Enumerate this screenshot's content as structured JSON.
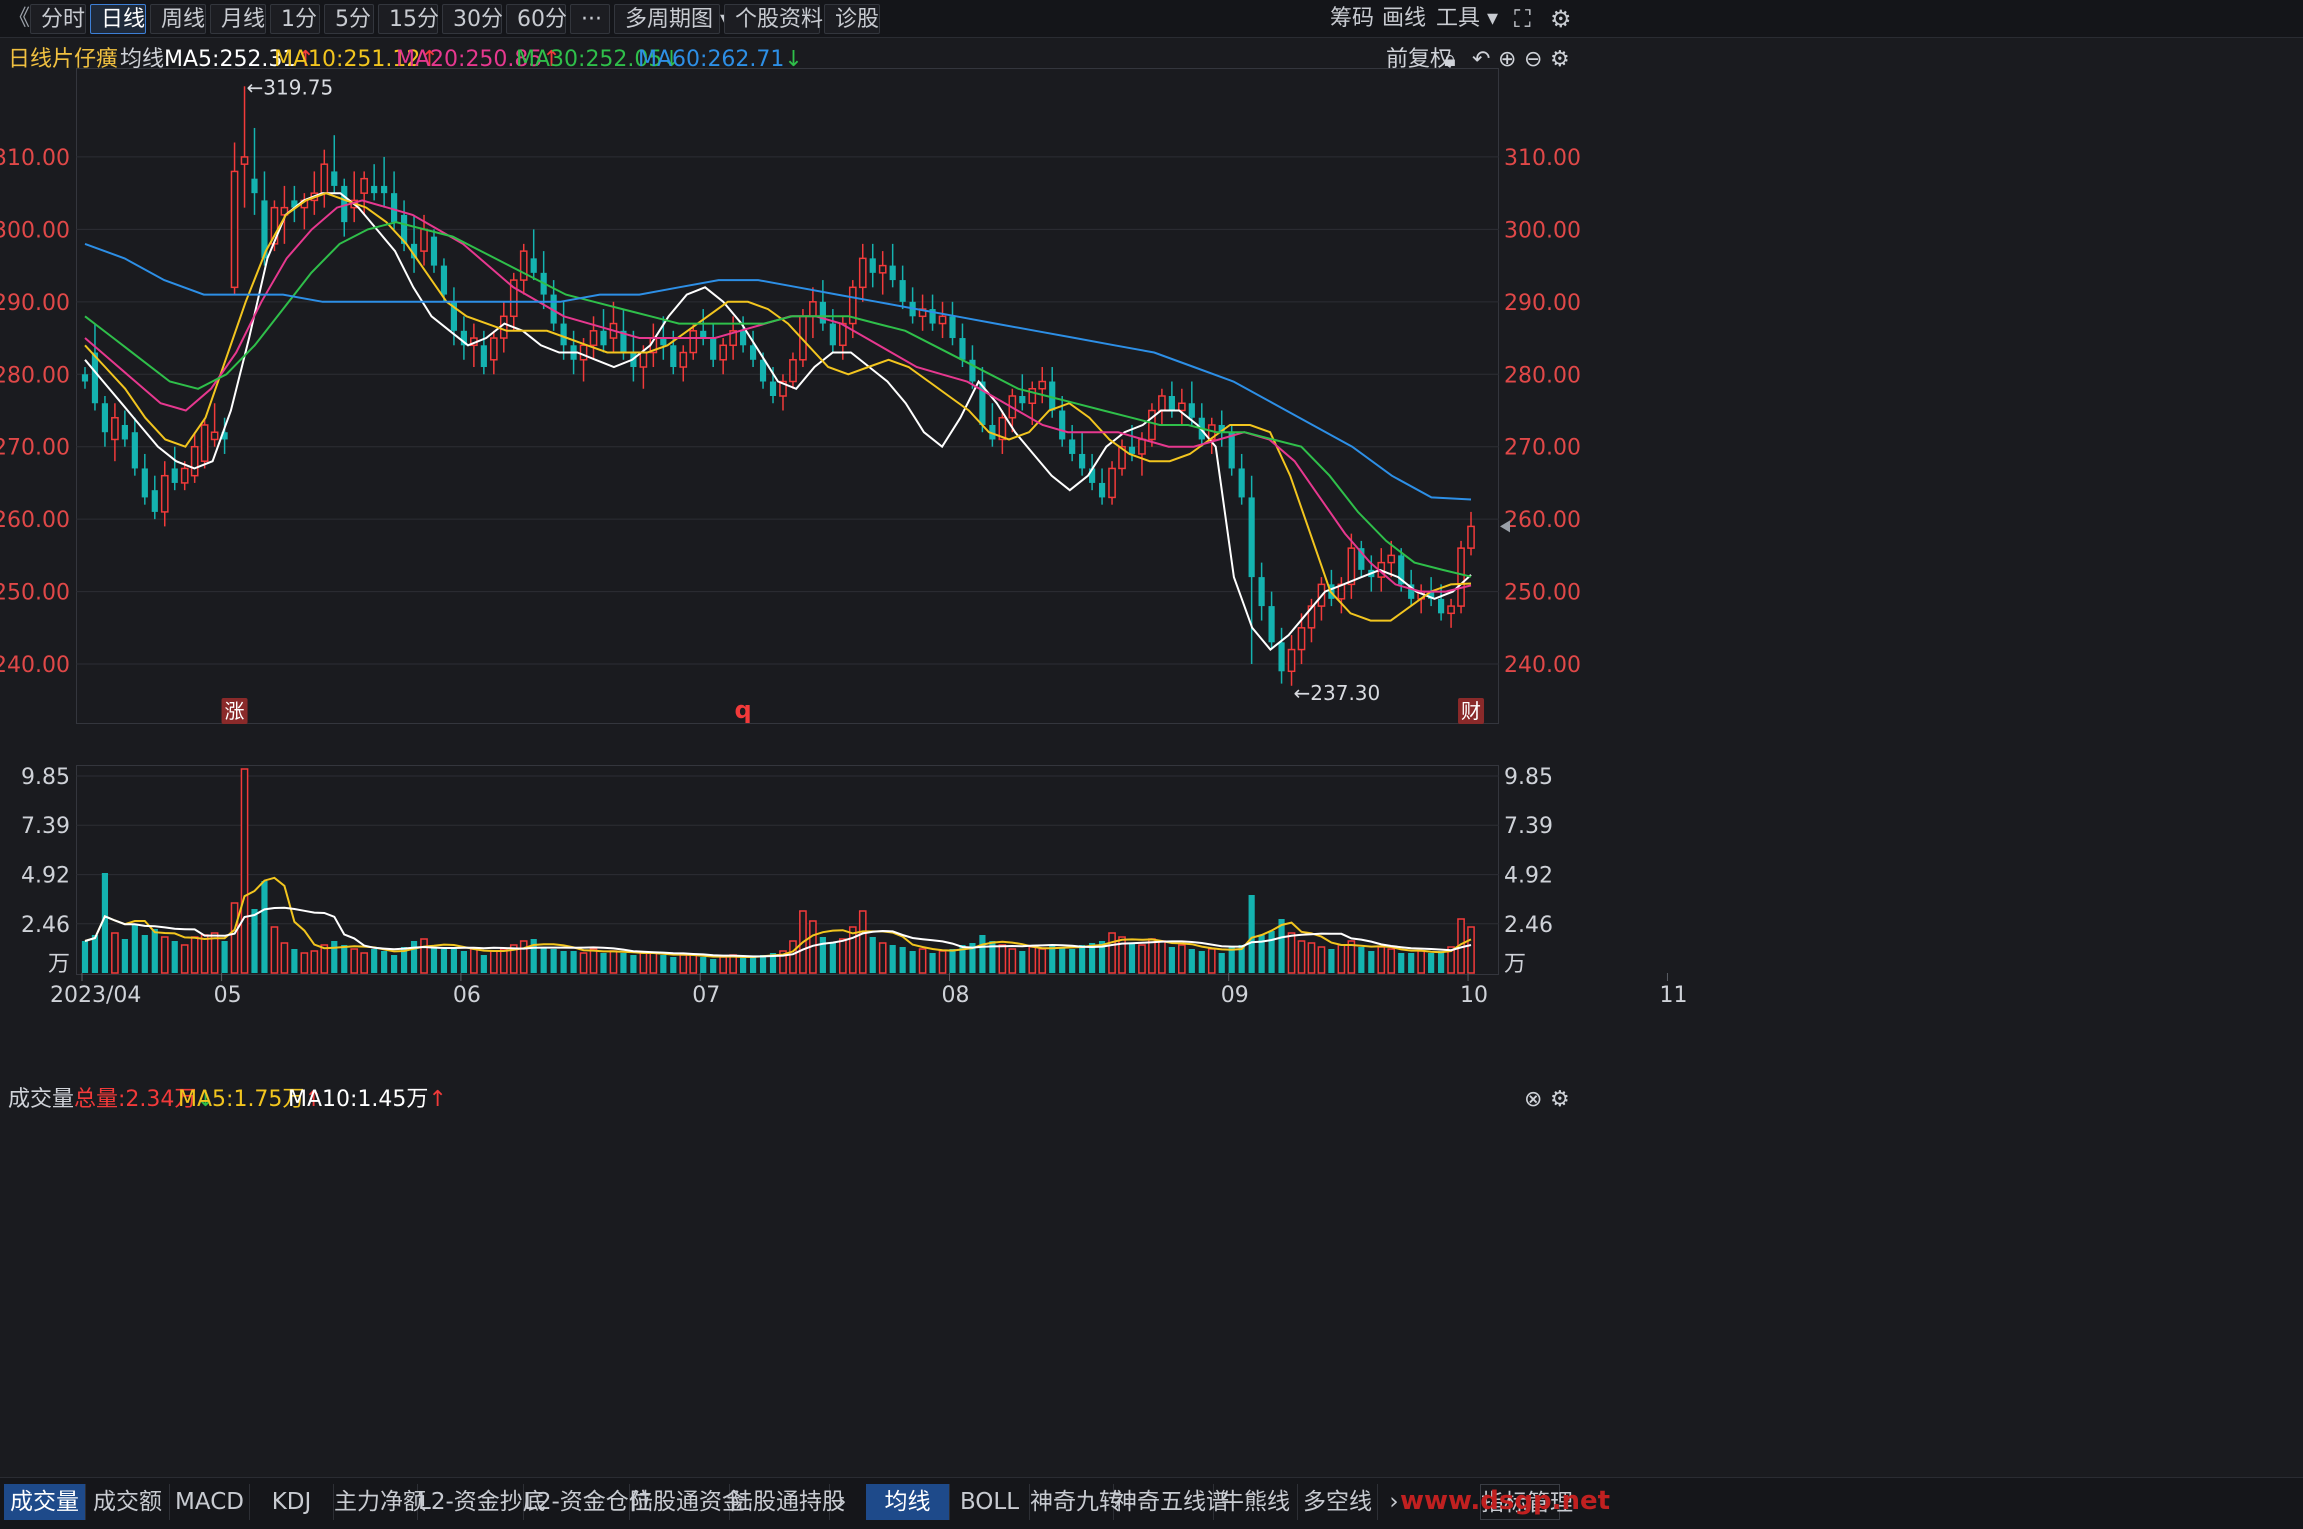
{
  "toolbar": {
    "collapse_glyph": "《",
    "timeframes": [
      "分时",
      "日线",
      "周线",
      "月线",
      "1分",
      "5分",
      "15分",
      "30分",
      "60分"
    ],
    "active": "日线",
    "more_glyph": "···",
    "multi_period": "多周期图",
    "stock_info": "个股资料",
    "diagnose": "诊股",
    "chips": "筹码",
    "draw": "画线",
    "tools": "工具",
    "icons": [
      "dropdown-icon",
      "fullscreen-icon",
      "settings-icon"
    ]
  },
  "legend": {
    "period": "日线",
    "stock_name": "片仔癀",
    "ma_title": "均线",
    "ma5": "MA5:252.31",
    "ma10": "MA10:251.12",
    "ma20": "MA20:250.85",
    "ma30": "MA30:252.05",
    "ma60": "MA60:262.71",
    "ma5_trend": "↑",
    "ma10_trend": "↑",
    "ma20_trend": "↑",
    "ma30_trend": "↓",
    "ma60_trend": "↓",
    "adjust": "前复权",
    "right_icons": [
      "lock-icon",
      "undo-icon",
      "zoom-in-icon",
      "zoom-out-icon",
      "settings-icon"
    ]
  },
  "colors": {
    "up": "#f23a3a",
    "down": "#14b3b0",
    "ma5": "#ffffff",
    "ma10": "#f2c51f",
    "ma20": "#e6388f",
    "ma30": "#2fbf4a",
    "ma60": "#2d8fe6",
    "axis_text": "#e04848",
    "grid": "#2c2e34"
  },
  "markers": {
    "high": "←319.75",
    "low": "←237.30",
    "badge_rise": "涨",
    "badge_q": "q",
    "badge_finance": "财"
  },
  "volume": {
    "title": "成交量",
    "total": "总量:2.34万",
    "total_trend": "↓",
    "ma5": "MA5:1.75万",
    "ma5_trend": "↑",
    "ma10": "MA10:1.45万",
    "ma10_trend": "↑",
    "unit": "万"
  },
  "bottom_tabs": {
    "left": [
      "成交量",
      "成交额",
      "MACD",
      "KDJ",
      "主力净额",
      "L2-资金抄底",
      "L2-资金仓位",
      "陆股通资金",
      "陆股通持股"
    ],
    "active_left": "成交量",
    "right": [
      "均线",
      "BOLL",
      "神奇九转",
      "神奇五线谱",
      "牛熊线",
      "多空线"
    ],
    "active_right": "均线",
    "manage": "指标管理",
    "watermark": "www.dsgp.net"
  },
  "chart_data": {
    "type": "candlestick",
    "price_axis": {
      "ticks": [
        "310.00",
        "300.00",
        "290.00",
        "280.00",
        "270.00",
        "260.00",
        "250.00",
        "240.00"
      ],
      "ylim": [
        232,
        322
      ]
    },
    "volume_axis": {
      "ticks": [
        "9.85",
        "7.39",
        "4.92",
        "2.46"
      ],
      "ylim": [
        0,
        10.3
      ]
    },
    "x_labels": [
      {
        "label": "2023/04",
        "index": 0
      },
      {
        "label": "05",
        "index": 14
      },
      {
        "label": "06",
        "index": 38
      },
      {
        "label": "07",
        "index": 62
      },
      {
        "label": "08",
        "index": 87
      },
      {
        "label": "09",
        "index": 115
      },
      {
        "label": "10",
        "index": 139
      },
      {
        "label": "11",
        "index": 159
      }
    ],
    "candles_ohlcv": [
      [
        280,
        281,
        278,
        279,
        1.6
      ],
      [
        283,
        287,
        275,
        276,
        1.9
      ],
      [
        276,
        277,
        270,
        272,
        5.0
      ],
      [
        271,
        276,
        268,
        274,
        2.0
      ],
      [
        273,
        275,
        270,
        271,
        1.7
      ],
      [
        272,
        274,
        266,
        267,
        2.4
      ],
      [
        267,
        269,
        262,
        263,
        1.9
      ],
      [
        264,
        266,
        260,
        261,
        2.2
      ],
      [
        261,
        268,
        259,
        266,
        1.8
      ],
      [
        267,
        270,
        264,
        265,
        1.6
      ],
      [
        265,
        268,
        264,
        267,
        1.4
      ],
      [
        266,
        272,
        265,
        270,
        1.8
      ],
      [
        268,
        274,
        267,
        273,
        1.9
      ],
      [
        271,
        276,
        270,
        272,
        2.0
      ],
      [
        272,
        274,
        269,
        271,
        1.6
      ],
      [
        292,
        312,
        291,
        308,
        3.5
      ],
      [
        309,
        319.75,
        303,
        310,
        10.2
      ],
      [
        307,
        314,
        302,
        305,
        3.2
      ],
      [
        304,
        308,
        295,
        296,
        4.6
      ],
      [
        298,
        304,
        297,
        303,
        2.3
      ],
      [
        302,
        306,
        298,
        303,
        1.5
      ],
      [
        304,
        306,
        301,
        303,
        1.2
      ],
      [
        303,
        305,
        300,
        304,
        1.0
      ],
      [
        304,
        308,
        302,
        305,
        1.1
      ],
      [
        305,
        311,
        303,
        309,
        1.4
      ],
      [
        308,
        313,
        305,
        306,
        1.6
      ],
      [
        306,
        307,
        299,
        301,
        1.4
      ],
      [
        303,
        308,
        301,
        304,
        1.2
      ],
      [
        305,
        308,
        302,
        307,
        1.0
      ],
      [
        306,
        309,
        304,
        305,
        1.2
      ],
      [
        306,
        310,
        303,
        305,
        1.1
      ],
      [
        305,
        308,
        300,
        301,
        0.9
      ],
      [
        302,
        304,
        297,
        298,
        1.3
      ],
      [
        298,
        302,
        294,
        296,
        1.6
      ],
      [
        297,
        302,
        295,
        300,
        1.7
      ],
      [
        299,
        300,
        294,
        295,
        1.3
      ],
      [
        295,
        296,
        290,
        291,
        1.2
      ],
      [
        290,
        292,
        284,
        286,
        1.2
      ],
      [
        286,
        288,
        282,
        284,
        1.1
      ],
      [
        284,
        287,
        281,
        285,
        1.2
      ],
      [
        284,
        286,
        280,
        281,
        0.9
      ],
      [
        282,
        286,
        280,
        285,
        1.1
      ],
      [
        285,
        290,
        283,
        288,
        1.2
      ],
      [
        288,
        294,
        286,
        293,
        1.4
      ],
      [
        293,
        298,
        291,
        297,
        1.6
      ],
      [
        296,
        300,
        293,
        294,
        1.7
      ],
      [
        294,
        297,
        289,
        291,
        1.3
      ],
      [
        291,
        293,
        286,
        287,
        1.2
      ],
      [
        287,
        290,
        282,
        284,
        1.1
      ],
      [
        284,
        286,
        280,
        282,
        1.1
      ],
      [
        282,
        285,
        279,
        284,
        1.0
      ],
      [
        284,
        288,
        282,
        286,
        1.2
      ],
      [
        286,
        289,
        283,
        284,
        1.0
      ],
      [
        285,
        290,
        283,
        287,
        1.1
      ],
      [
        286,
        289,
        282,
        283,
        1.0
      ],
      [
        283,
        286,
        279,
        281,
        0.9
      ],
      [
        281,
        284,
        278,
        283,
        1.0
      ],
      [
        283,
        287,
        281,
        285,
        1.0
      ],
      [
        285,
        288,
        282,
        284,
        0.9
      ],
      [
        284,
        286,
        280,
        281,
        0.8
      ],
      [
        281,
        284,
        279,
        283,
        0.9
      ],
      [
        283,
        287,
        282,
        286,
        0.9
      ],
      [
        286,
        289,
        284,
        285,
        0.8
      ],
      [
        285,
        287,
        281,
        282,
        0.7
      ],
      [
        282,
        285,
        280,
        284,
        0.8
      ],
      [
        284,
        288,
        282,
        286,
        0.9
      ],
      [
        286,
        288,
        283,
        284,
        0.8
      ],
      [
        284,
        286,
        281,
        282,
        0.8
      ],
      [
        282,
        283,
        278,
        279,
        0.9
      ],
      [
        279,
        281,
        276,
        277,
        1.0
      ],
      [
        277,
        280,
        275,
        279,
        1.1
      ],
      [
        279,
        283,
        278,
        282,
        1.6
      ],
      [
        282,
        289,
        281,
        288,
        3.1
      ],
      [
        288,
        292,
        285,
        290,
        2.6
      ],
      [
        290,
        293,
        286,
        287,
        1.8
      ],
      [
        287,
        289,
        283,
        284,
        1.5
      ],
      [
        284,
        288,
        282,
        287,
        1.7
      ],
      [
        287,
        293,
        285,
        292,
        2.3
      ],
      [
        292,
        298,
        290,
        296,
        3.1
      ],
      [
        296,
        298,
        292,
        294,
        1.8
      ],
      [
        294,
        297,
        291,
        295,
        1.5
      ],
      [
        295,
        298,
        292,
        293,
        1.4
      ],
      [
        293,
        295,
        289,
        290,
        1.3
      ],
      [
        290,
        292,
        287,
        288,
        1.1
      ],
      [
        288,
        291,
        286,
        289,
        1.2
      ],
      [
        289,
        291,
        286,
        287,
        1.0
      ],
      [
        287,
        290,
        285,
        288,
        1.1
      ],
      [
        288,
        290,
        284,
        285,
        1.2
      ],
      [
        285,
        287,
        281,
        282,
        1.4
      ],
      [
        282,
        284,
        278,
        279,
        1.5
      ],
      [
        279,
        281,
        272,
        273,
        1.9
      ],
      [
        273,
        276,
        270,
        271,
        1.6
      ],
      [
        271,
        275,
        269,
        274,
        1.4
      ],
      [
        274,
        278,
        272,
        277,
        1.2
      ],
      [
        277,
        280,
        275,
        276,
        1.1
      ],
      [
        276,
        279,
        273,
        278,
        1.3
      ],
      [
        278,
        281,
        276,
        279,
        1.2
      ],
      [
        279,
        281,
        274,
        275,
        1.4
      ],
      [
        275,
        277,
        270,
        271,
        1.3
      ],
      [
        271,
        273,
        268,
        269,
        1.2
      ],
      [
        269,
        272,
        266,
        267,
        1.4
      ],
      [
        267,
        269,
        264,
        265,
        1.5
      ],
      [
        265,
        267,
        262,
        263,
        1.6
      ],
      [
        263,
        268,
        262,
        267,
        2.0
      ],
      [
        267,
        271,
        266,
        270,
        1.8
      ],
      [
        270,
        273,
        268,
        269,
        1.5
      ],
      [
        269,
        272,
        266,
        271,
        1.4
      ],
      [
        271,
        276,
        270,
        275,
        1.7
      ],
      [
        275,
        278,
        273,
        277,
        1.6
      ],
      [
        277,
        279,
        274,
        275,
        1.3
      ],
      [
        275,
        278,
        273,
        276,
        1.4
      ],
      [
        276,
        279,
        273,
        274,
        1.2
      ],
      [
        274,
        276,
        270,
        271,
        1.1
      ],
      [
        271,
        274,
        269,
        273,
        1.2
      ],
      [
        273,
        275,
        270,
        272,
        1.0
      ],
      [
        272,
        273,
        266,
        267,
        1.3
      ],
      [
        267,
        269,
        262,
        263,
        1.4
      ],
      [
        263,
        266,
        240,
        252,
        3.9
      ],
      [
        252,
        254,
        246,
        248,
        1.9
      ],
      [
        248,
        250,
        242,
        243,
        2.1
      ],
      [
        243,
        245,
        237.3,
        239,
        2.7
      ],
      [
        239,
        244,
        237,
        242,
        2.0
      ],
      [
        242,
        247,
        240,
        245,
        1.6
      ],
      [
        245,
        249,
        243,
        248,
        1.5
      ],
      [
        248,
        252,
        246,
        251,
        1.3
      ],
      [
        251,
        253,
        248,
        249,
        1.2
      ],
      [
        249,
        252,
        247,
        251,
        1.4
      ],
      [
        251,
        258,
        249,
        256,
        1.6
      ],
      [
        256,
        257,
        252,
        253,
        1.3
      ],
      [
        253,
        255,
        250,
        252,
        1.1
      ],
      [
        252,
        256,
        250,
        254,
        1.3
      ],
      [
        254,
        257,
        252,
        255,
        1.2
      ],
      [
        255,
        256,
        250,
        251,
        1.0
      ],
      [
        251,
        253,
        248,
        249,
        1.0
      ],
      [
        249,
        251,
        247,
        250,
        1.1
      ],
      [
        250,
        252,
        248,
        249,
        1.0
      ],
      [
        249,
        251,
        246,
        247,
        1.1
      ],
      [
        247,
        249,
        245,
        248,
        1.3
      ],
      [
        248,
        257,
        247,
        256,
        2.7
      ],
      [
        256,
        261,
        255,
        259,
        2.3
      ]
    ],
    "ma_series": [
      {
        "name": "MA5",
        "values": [
          282,
          279,
          276,
          273,
          270,
          268,
          267,
          268,
          275,
          285,
          296,
          302,
          304,
          305,
          305,
          303,
          300,
          297,
          292,
          288,
          286,
          284,
          285,
          287,
          286,
          284,
          283,
          283,
          282,
          281,
          282,
          284,
          288,
          291,
          292,
          290,
          287,
          283,
          279,
          278,
          281,
          283,
          283,
          281,
          279,
          276,
          272,
          270,
          274,
          279,
          276,
          272,
          269,
          266,
          264,
          266,
          270,
          272,
          273,
          275,
          275,
          273,
          270,
          252,
          245,
          242,
          244,
          247,
          250,
          251,
          252,
          253,
          252,
          250,
          249,
          250,
          252.31
        ]
      },
      {
        "name": "MA10",
        "values": [
          284,
          281,
          278,
          274,
          271,
          270,
          274,
          282,
          290,
          297,
          302,
          304,
          305,
          304,
          303,
          301,
          298,
          294,
          290,
          288,
          287,
          286,
          286,
          286,
          285,
          284,
          283,
          283,
          283,
          284,
          286,
          288,
          290,
          290,
          289,
          287,
          284,
          281,
          280,
          281,
          282,
          281,
          279,
          277,
          275,
          272,
          271,
          272,
          275,
          276,
          274,
          271,
          269,
          268,
          268,
          269,
          271,
          273,
          273,
          272,
          266,
          258,
          250,
          247,
          246,
          246,
          248,
          250,
          251,
          251.12
        ]
      },
      {
        "name": "MA20",
        "values": [
          285,
          282,
          279,
          276,
          275,
          278,
          283,
          290,
          296,
          300,
          303,
          304,
          303,
          302,
          300,
          298,
          295,
          292,
          290,
          288,
          287,
          286,
          285,
          285,
          285,
          285,
          286,
          287,
          288,
          288,
          287,
          285,
          283,
          281,
          280,
          279,
          277,
          275,
          273,
          272,
          272,
          272,
          271,
          270,
          270,
          271,
          272,
          271,
          268,
          263,
          258,
          254,
          251,
          250,
          250,
          250.85
        ]
      },
      {
        "name": "MA30",
        "values": [
          288,
          285,
          282,
          279,
          278,
          280,
          284,
          289,
          294,
          298,
          300,
          301,
          300,
          299,
          297,
          295,
          293,
          291,
          290,
          289,
          288,
          287,
          287,
          287,
          287,
          288,
          288,
          288,
          287,
          286,
          284,
          282,
          280,
          278,
          277,
          276,
          275,
          274,
          273,
          273,
          272,
          272,
          271,
          270,
          266,
          261,
          257,
          254,
          253,
          252.05
        ]
      },
      {
        "name": "MA60",
        "values": [
          298,
          296,
          293,
          291,
          291,
          291,
          290,
          290,
          290,
          290,
          290,
          290,
          290,
          291,
          291,
          292,
          293,
          293,
          292,
          291,
          290,
          289,
          288,
          287,
          286,
          285,
          284,
          283,
          281,
          279,
          276,
          273,
          270,
          266,
          263,
          262.71
        ]
      }
    ]
  }
}
